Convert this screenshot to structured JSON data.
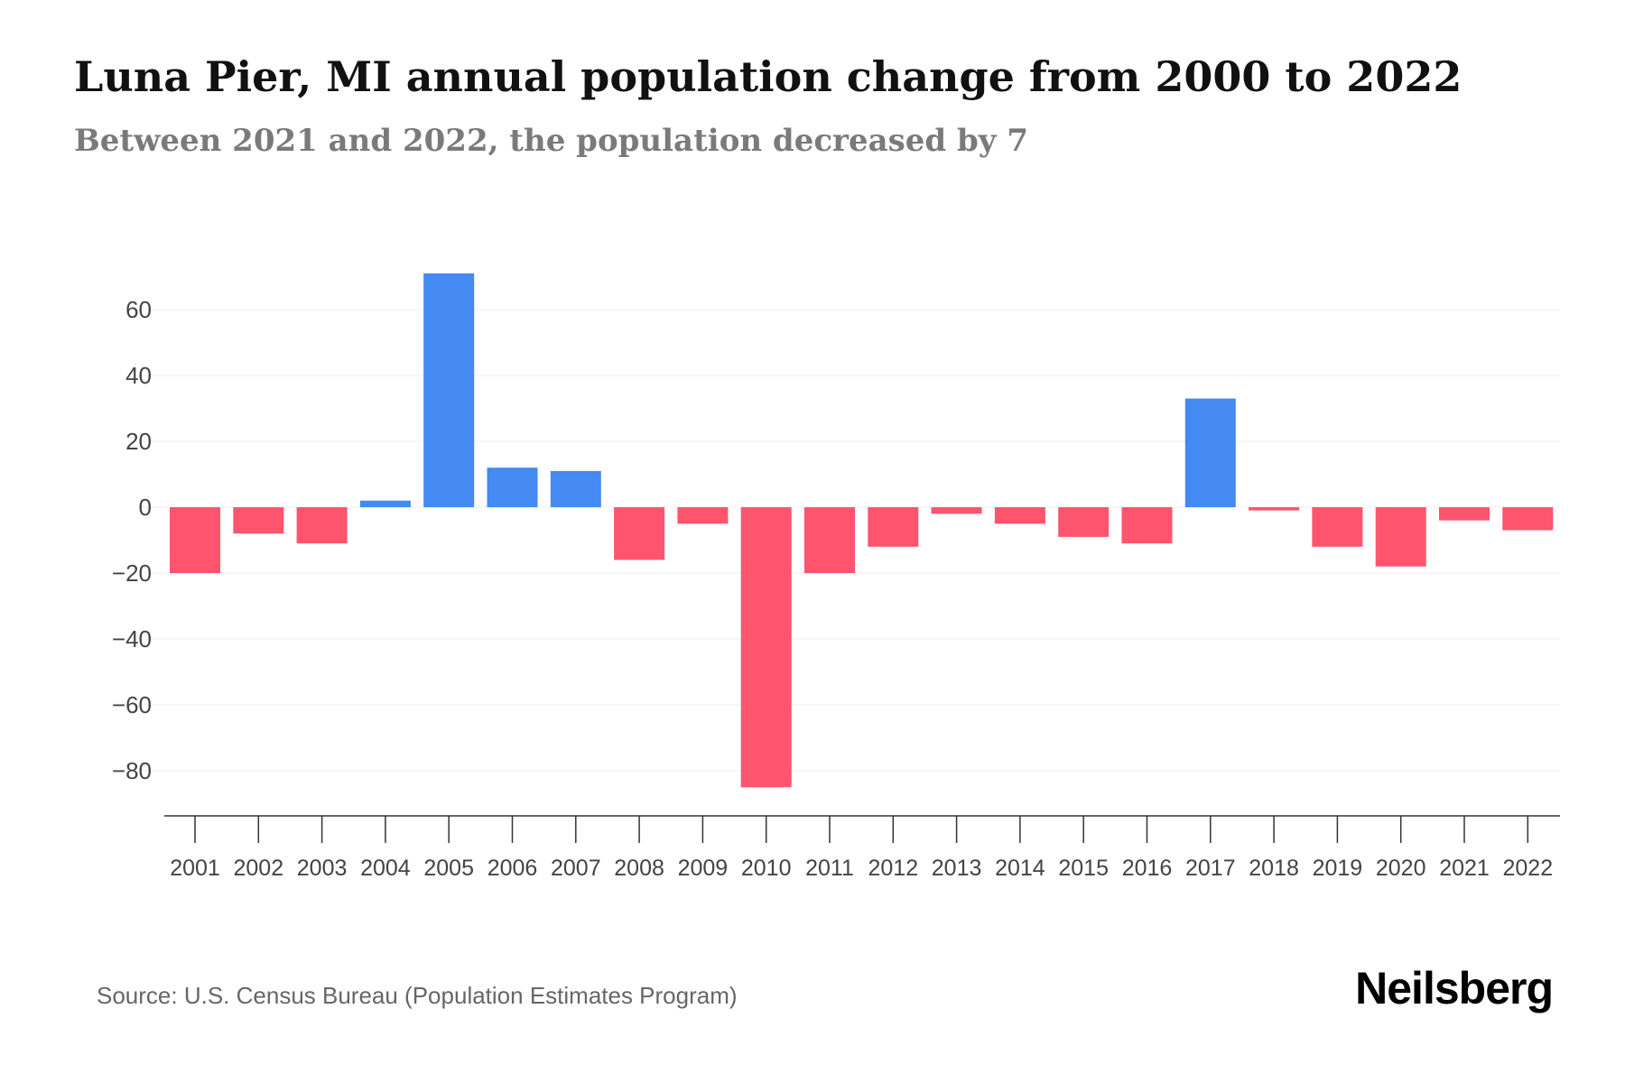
{
  "header": {
    "title": "Luna Pier, MI annual population change from 2000 to 2022",
    "subtitle": "Between 2021 and 2022, the population decreased by 7"
  },
  "footer": {
    "source": "Source: U.S. Census Bureau (Population Estimates Program)",
    "brand": "Neilsberg"
  },
  "colors": {
    "positive": "#4589f2",
    "negative": "#fe546e",
    "grid": "#ececec",
    "axis": "#333333",
    "tick_label": "#444444"
  },
  "chart_data": {
    "type": "bar",
    "title": "Luna Pier, MI annual population change from 2000 to 2022",
    "subtitle": "Between 2021 and 2022, the population decreased by 7",
    "xlabel": "",
    "ylabel": "",
    "categories": [
      "2001",
      "2002",
      "2003",
      "2004",
      "2005",
      "2006",
      "2007",
      "2008",
      "2009",
      "2010",
      "2011",
      "2012",
      "2013",
      "2014",
      "2015",
      "2016",
      "2017",
      "2018",
      "2019",
      "2020",
      "2021",
      "2022"
    ],
    "values": [
      -20,
      -8,
      -11,
      2,
      71,
      12,
      11,
      -16,
      -5,
      -85,
      -20,
      -12,
      -2,
      -5,
      -9,
      -11,
      33,
      -1,
      -12,
      -18,
      -4,
      -7
    ],
    "yticks": [
      60,
      40,
      20,
      0,
      -20,
      -40,
      -60,
      -80
    ],
    "ytick_labels": [
      "60",
      "40",
      "20",
      "0",
      "−20",
      "−40",
      "−60",
      "−80"
    ],
    "ylim": [
      -94,
      75
    ],
    "grid": true,
    "legend": "none"
  }
}
